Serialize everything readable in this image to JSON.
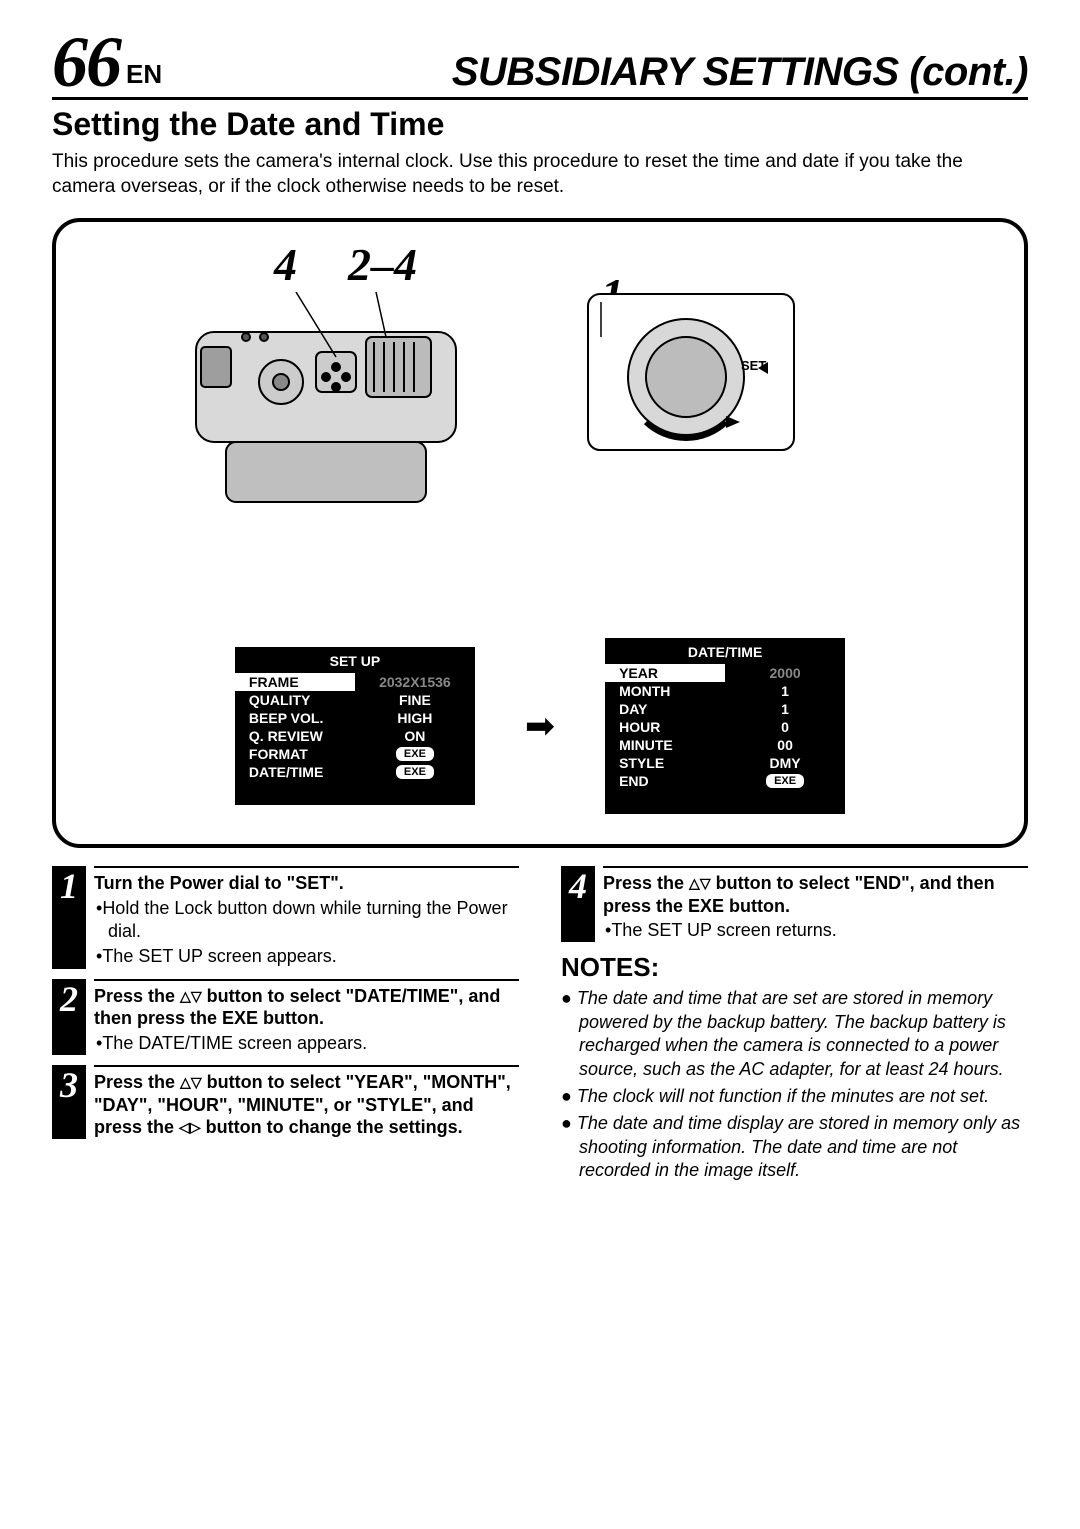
{
  "header": {
    "page_number": "66",
    "lang": "EN",
    "title": "SUBSIDIARY SETTINGS (cont.)"
  },
  "section": {
    "title": "Setting the Date and Time",
    "intro": "This procedure sets the camera's internal clock. Use this procedure to reset the time and date if you take the camera overseas, or if the clock otherwise needs to be reset."
  },
  "figure": {
    "callouts": {
      "c4": "4",
      "c24": "2–4",
      "c1": "1"
    },
    "dial_label": "SET",
    "setup_menu": {
      "title": "SET UP",
      "rows": [
        {
          "label": "FRAME",
          "value": "2032X1536",
          "hl": true
        },
        {
          "label": "QUALITY",
          "value": "FINE",
          "hl": false
        },
        {
          "label": "BEEP VOL.",
          "value": "HIGH",
          "hl": false
        },
        {
          "label": "Q. REVIEW",
          "value": "ON",
          "hl": false
        },
        {
          "label": "FORMAT",
          "value": "EXE",
          "hl": false,
          "exe": true
        },
        {
          "label": "DATE/TIME",
          "value": "EXE",
          "hl": false,
          "exe": true
        }
      ]
    },
    "datetime_menu": {
      "title": "DATE/TIME",
      "rows": [
        {
          "label": "YEAR",
          "value": "2000",
          "hl": true
        },
        {
          "label": "MONTH",
          "value": "1",
          "hl": false
        },
        {
          "label": "DAY",
          "value": "1",
          "hl": false
        },
        {
          "label": "HOUR",
          "value": "0",
          "hl": false
        },
        {
          "label": "MINUTE",
          "value": "00",
          "hl": false
        },
        {
          "label": "STYLE",
          "value": "DMY",
          "hl": false
        },
        {
          "label": "END",
          "value": "EXE",
          "hl": false,
          "exe": true
        }
      ]
    }
  },
  "steps": {
    "s1": {
      "num": "1",
      "head": "Turn the Power dial to \"SET\".",
      "bullets": [
        "Hold the Lock button down while turning the Power dial.",
        "The SET UP screen appears."
      ]
    },
    "s2": {
      "num": "2",
      "head_pre": "Press the ",
      "head_post": " button to select \"DATE/TIME\", and then press the EXE button.",
      "bullets": [
        "The DATE/TIME screen appears."
      ]
    },
    "s3": {
      "num": "3",
      "head_pre": "Press the ",
      "head_mid": " button to select \"YEAR\", \"MONTH\", \"DAY\", \"HOUR\", \"MINUTE\", or \"STYLE\", and press the ",
      "head_post": " button to change the settings."
    },
    "s4": {
      "num": "4",
      "head_pre": "Press the ",
      "head_post": " button to select \"END\", and then press the EXE button.",
      "bullets": [
        "The SET UP screen returns."
      ]
    }
  },
  "notes": {
    "title": "NOTES:",
    "items": [
      "The date and time that are set are stored in memory powered by the backup battery. The backup battery is recharged when the camera is connected to a power source, such as the AC adapter, for at least 24 hours.",
      "The clock will not function if the minutes are not set.",
      "The date and time display are stored in memory only as shooting information. The date and time are not recorded in the image itself."
    ]
  }
}
